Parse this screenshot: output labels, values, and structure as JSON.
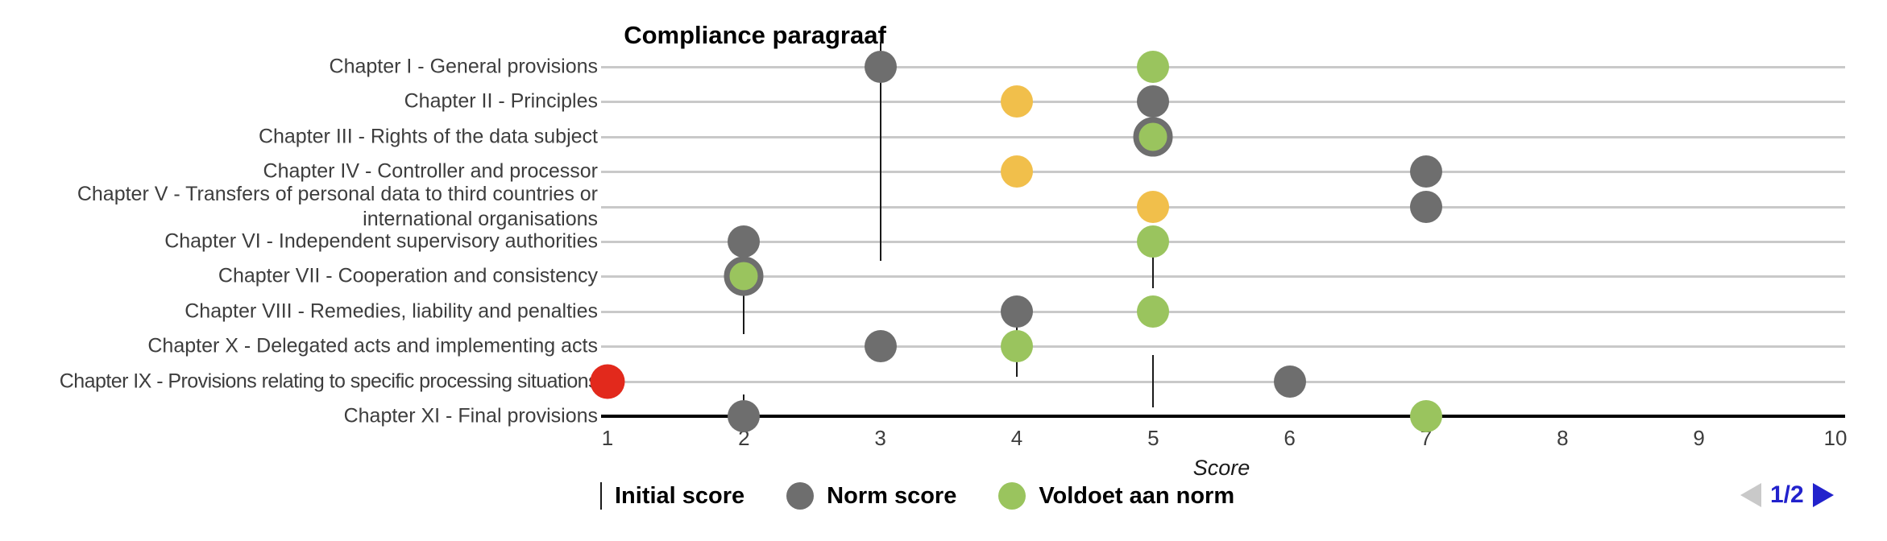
{
  "title": "Compliance paragraaf",
  "x_axis": {
    "label": "Score",
    "ticks": [
      "1",
      "2",
      "3",
      "4",
      "5",
      "6",
      "7",
      "8",
      "9",
      "10"
    ]
  },
  "legend": [
    {
      "label": "Initial score",
      "marker": "vline",
      "color": "#1a1a1a"
    },
    {
      "label": "Norm score",
      "marker": "dot",
      "color": "#6e6e6e"
    },
    {
      "label": "Voldoet aan norm",
      "marker": "dot",
      "color": "#9ac45e"
    }
  ],
  "pagination": {
    "current_page": "1/2",
    "prev_icon": "left-triangle",
    "next_icon": "right-triangle",
    "active_color": "#2222cc",
    "disabled_color": "#c9c9c9"
  },
  "colors": {
    "norm_gray": "#6e6e6e",
    "voldoet_green": "#9ac45e",
    "amber": "#f1bf4b",
    "red": "#e2291c",
    "gridline": "#c9c9c9",
    "axis": "#000000",
    "label_text": "#3d3d3d"
  },
  "chart_data": {
    "type": "scatter",
    "title": "Compliance paragraaf",
    "xlabel": "Score",
    "xlim": [
      1,
      10
    ],
    "x_ticks": [
      1,
      2,
      3,
      4,
      5,
      6,
      7,
      8,
      9,
      10
    ],
    "grid": "horizontal",
    "legend_position": "bottom",
    "categories": [
      "Chapter I - General provisions",
      "Chapter II - Principles",
      "Chapter III - Rights of the data subject",
      "Chapter IV - Controller and processor",
      "Chapter V - Transfers of personal data to third countries or international organisations",
      "Chapter VI - Independent supervisory authorities",
      "Chapter VII - Cooperation and consistency",
      "Chapter VIII - Remedies, liability and penalties",
      "Chapter X - Delegated acts and implementing acts",
      "Chapter IX - Provisions relating to specific processing situations",
      "Chapter XI - Final provisions"
    ],
    "series": [
      {
        "name": "Norm score",
        "marker": "dot",
        "color": "#6e6e6e",
        "points": [
          {
            "category_index": 0,
            "score": 3
          },
          {
            "category_index": 1,
            "score": 5
          },
          {
            "category_index": 3,
            "score": 7
          },
          {
            "category_index": 4,
            "score": 7
          },
          {
            "category_index": 5,
            "score": 2
          },
          {
            "category_index": 7,
            "score": 4
          },
          {
            "category_index": 8,
            "score": 3
          },
          {
            "category_index": 9,
            "score": 6
          },
          {
            "category_index": 10,
            "score": 2
          }
        ]
      },
      {
        "name": "Voldoet aan norm",
        "marker": "dot",
        "color": "#9ac45e",
        "points": [
          {
            "category_index": 0,
            "score": 5
          },
          {
            "category_index": 5,
            "score": 5
          },
          {
            "category_index": 7,
            "score": 5
          },
          {
            "category_index": 8,
            "score": 4
          },
          {
            "category_index": 10,
            "score": 7
          }
        ]
      },
      {
        "name": "Voldoet aan norm (ringed)",
        "marker": "ringed-dot",
        "color": "#9ac45e",
        "ring_color": "#6e6e6e",
        "points": [
          {
            "category_index": 2,
            "score": 5
          },
          {
            "category_index": 6,
            "score": 2
          }
        ]
      },
      {
        "name": "Amber score",
        "marker": "dot",
        "color": "#f1bf4b",
        "points": [
          {
            "category_index": 1,
            "score": 4
          },
          {
            "category_index": 3,
            "score": 4
          },
          {
            "category_index": 4,
            "score": 5
          }
        ]
      },
      {
        "name": "Red score",
        "marker": "dot",
        "color": "#e2291c",
        "points": [
          {
            "category_index": 9,
            "score": 1
          }
        ]
      },
      {
        "name": "Initial score",
        "marker": "vline",
        "color": "#1a1a1a",
        "segments": [
          {
            "score": 3,
            "row_from": -0.71,
            "row_to": 5.55
          },
          {
            "score": 2,
            "row_from": 6.5,
            "row_to": 7.65
          },
          {
            "score": 2,
            "row_from": 9.38,
            "row_to": 9.98
          },
          {
            "score": 4,
            "row_from": 7.28,
            "row_to": 8.87
          },
          {
            "score": 5,
            "row_from": 5.32,
            "row_to": 6.34
          },
          {
            "score": 5,
            "row_from": 8.25,
            "row_to": 9.75
          }
        ]
      }
    ]
  }
}
